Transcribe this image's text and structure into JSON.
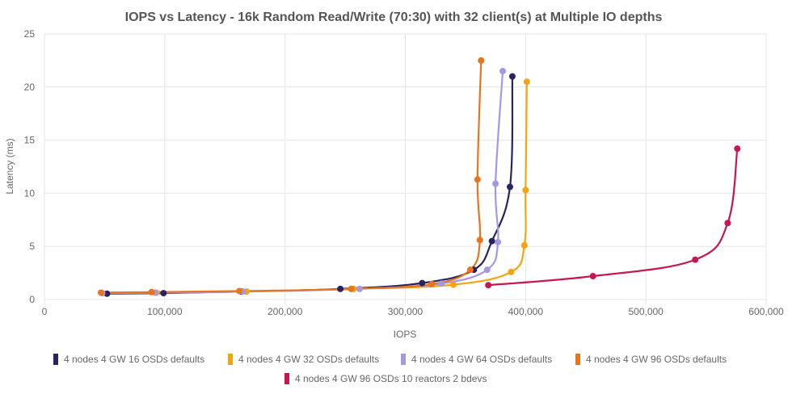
{
  "chart_data": {
    "type": "line",
    "title": "IOPS vs Latency - 16k Random Read/Write (70:30) with 32 client(s) at Multiple IO depths",
    "xlabel": "IOPS",
    "ylabel": "Latency (ms)",
    "xlim": [
      0,
      600000
    ],
    "ylim": [
      0,
      25
    ],
    "xticks": [
      0,
      100000,
      200000,
      300000,
      400000,
      500000,
      600000
    ],
    "xtick_labels": [
      "0",
      "100,000",
      "200,000",
      "300,000",
      "400,000",
      "500,000",
      "600,000"
    ],
    "yticks": [
      0,
      5,
      10,
      15,
      20,
      25
    ],
    "ytick_labels": [
      "0",
      "5",
      "10",
      "15",
      "20",
      "25"
    ],
    "grid": true,
    "legend_position": "bottom",
    "series": [
      {
        "name": "4 nodes 4 GW 16 OSDs defaults",
        "color": "#282362",
        "points": [
          [
            52000,
            0.55
          ],
          [
            99000,
            0.6
          ],
          [
            164000,
            0.75
          ],
          [
            246000,
            1.0
          ],
          [
            314000,
            1.55
          ],
          [
            357000,
            2.8
          ],
          [
            372000,
            5.5
          ],
          [
            387000,
            10.6
          ],
          [
            389000,
            21.0
          ]
        ]
      },
      {
        "name": "4 nodes 4 GW 32 OSDs defaults",
        "color": "#F4A412",
        "points": [
          [
            48000,
            0.6
          ],
          [
            93000,
            0.65
          ],
          [
            168000,
            0.75
          ],
          [
            257000,
            1.0
          ],
          [
            340000,
            1.4
          ],
          [
            388000,
            2.6
          ],
          [
            399000,
            5.1
          ],
          [
            400000,
            10.3
          ],
          [
            401000,
            20.5
          ]
        ]
      },
      {
        "name": "4 nodes 4 GW 64 OSDs defaults",
        "color": "#A697E5",
        "points": [
          [
            48000,
            0.6
          ],
          [
            92000,
            0.65
          ],
          [
            165000,
            0.75
          ],
          [
            262000,
            1.0
          ],
          [
            330000,
            1.5
          ],
          [
            368000,
            2.8
          ],
          [
            377000,
            5.4
          ],
          [
            375000,
            10.9
          ],
          [
            381000,
            21.5
          ]
        ]
      },
      {
        "name": "4 nodes 4 GW 96 OSDs defaults",
        "color": "#E8741B",
        "points": [
          [
            47000,
            0.65
          ],
          [
            89000,
            0.7
          ],
          [
            162000,
            0.8
          ],
          [
            255000,
            1.0
          ],
          [
            322000,
            1.45
          ],
          [
            354000,
            2.8
          ],
          [
            362000,
            5.6
          ],
          [
            360000,
            11.3
          ],
          [
            363000,
            22.5
          ]
        ]
      },
      {
        "name": "4 nodes 4 GW 96 OSDs 10 reactors 2 bdevs",
        "color": "#C8164F",
        "points": [
          [
            369000,
            1.35
          ],
          [
            456000,
            2.2
          ],
          [
            541000,
            3.75
          ],
          [
            568000,
            7.2
          ],
          [
            576000,
            14.2
          ]
        ]
      }
    ]
  }
}
